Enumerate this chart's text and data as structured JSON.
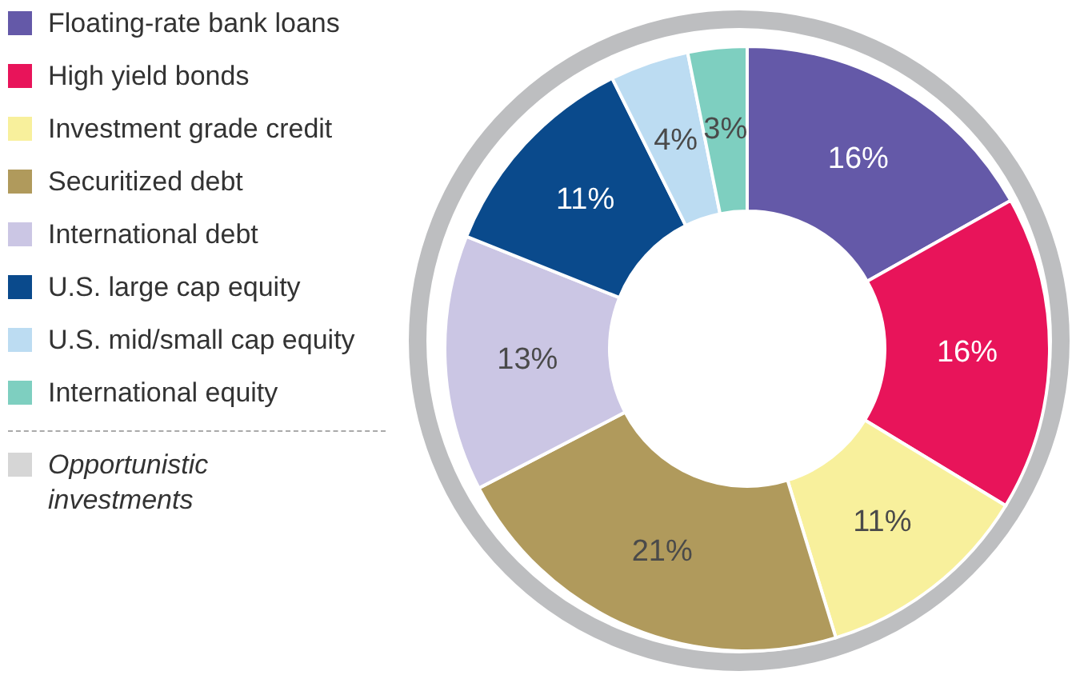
{
  "chart_data": {
    "type": "donut",
    "legend": "left",
    "categories": [
      "Floating-rate bank loans",
      "High yield bonds",
      "Investment grade credit",
      "Securitized debt",
      "International debt",
      "U.S. large cap equity",
      "U.S. mid/small cap equity",
      "International equity"
    ],
    "values": [
      16,
      16,
      11,
      21,
      13,
      11,
      4,
      3
    ],
    "value_labels": [
      "16%",
      "16%",
      "11%",
      "21%",
      "13%",
      "11%",
      "4%",
      "3%"
    ],
    "colors": [
      "#6459a8",
      "#e8145a",
      "#f8f09c",
      "#b09a5c",
      "#cbc6e4",
      "#0a4a8c",
      "#bcdcf2",
      "#7ecfc0"
    ],
    "annotations": [
      "Opportunistic investments"
    ]
  }
}
